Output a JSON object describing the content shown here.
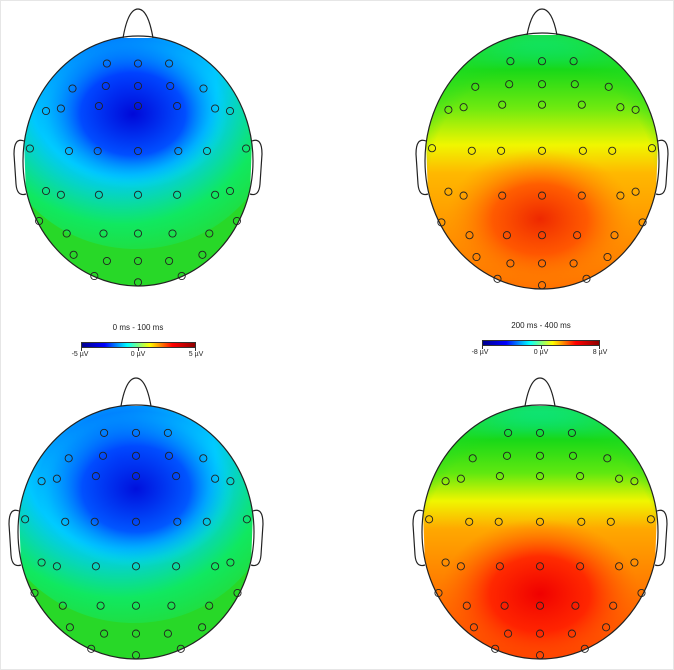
{
  "colorbars": [
    {
      "title": "0 ms - 100 ms",
      "labels": {
        "min": "-5 µV",
        "mid": "0 µV",
        "max": "5 µV"
      },
      "colors": [
        "#00008f",
        "#0000ff",
        "#00ffff",
        "#ffff00",
        "#ff0000",
        "#8f0000"
      ]
    },
    {
      "title": "200 ms - 400 ms",
      "labels": {
        "min": "-8 µV",
        "mid": "0 µV",
        "max": "8 µV"
      },
      "colors": [
        "#00008f",
        "#0000ff",
        "#00ffff",
        "#ffff00",
        "#ff0000",
        "#8f0000"
      ]
    }
  ],
  "topomaps": [
    {
      "id": "top-left",
      "colormap_group": 0,
      "pattern": "negative-frontocentral"
    },
    {
      "id": "top-right",
      "colormap_group": 1,
      "pattern": "positive-centroparietal"
    },
    {
      "id": "bottom-left",
      "colormap_group": 0,
      "pattern": "negative-frontocentral"
    },
    {
      "id": "bottom-right",
      "colormap_group": 1,
      "pattern": "positive-parietal-strong"
    }
  ]
}
